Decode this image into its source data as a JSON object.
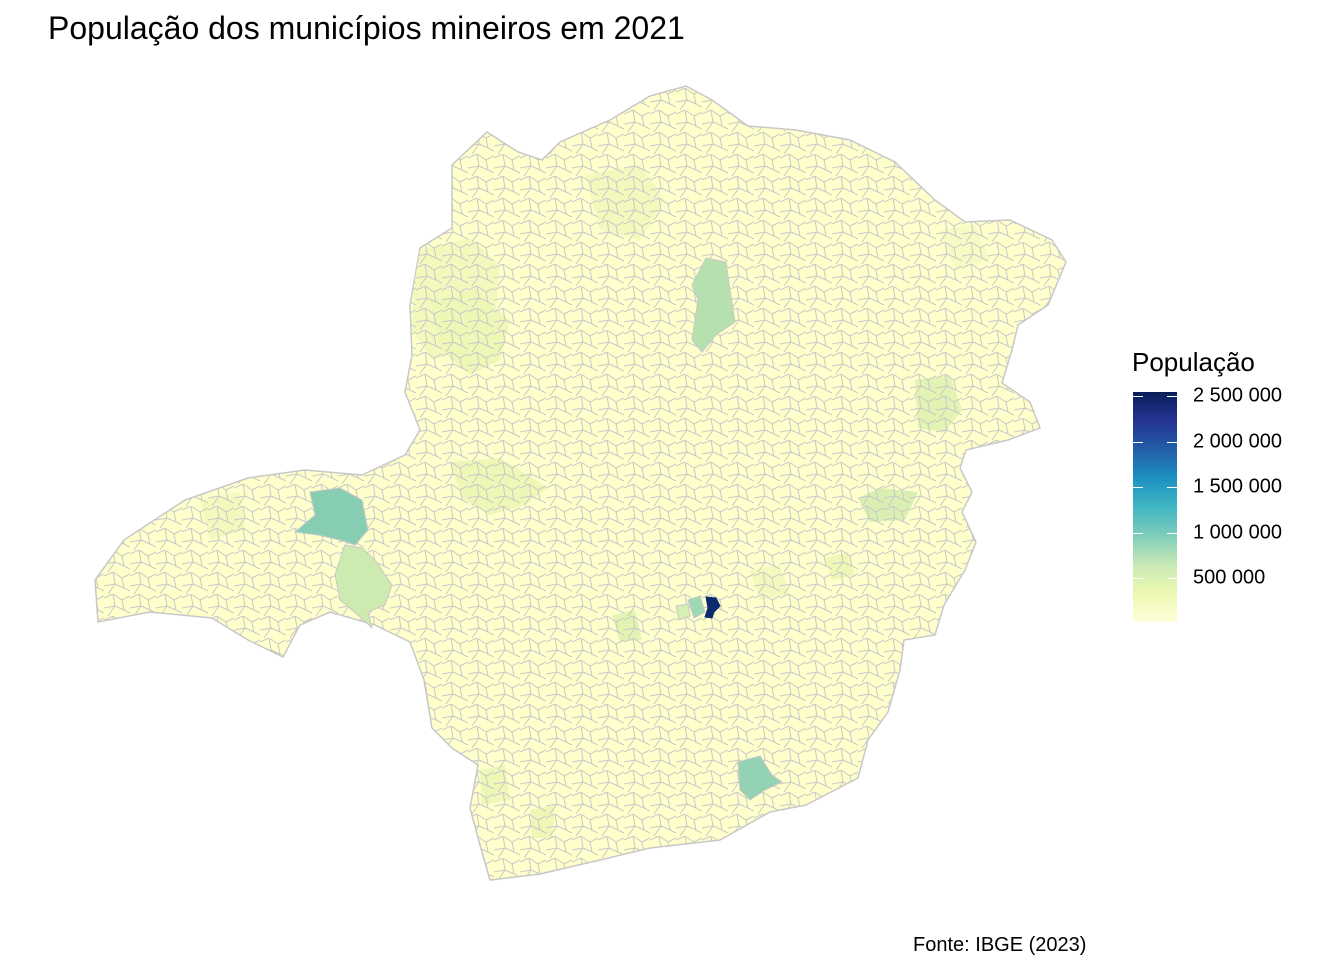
{
  "title": "População dos municípios mineiros em 2021",
  "legend": {
    "title": "População",
    "ticks": [
      "2 500 000",
      "2 000 000",
      "1 500 000",
      "1 000 000",
      "500 000"
    ],
    "scale_colors": [
      "#081d58",
      "#253494",
      "#225ea8",
      "#1d91c0",
      "#41b6c4",
      "#7fcdbb",
      "#c7e9b4",
      "#edf8b1",
      "#ffffd9"
    ]
  },
  "caption": "Fonte: IBGE (2023)",
  "map": {
    "region": "Minas Gerais",
    "base_fill": "#ffffcc",
    "border_color": "#c8c8c8"
  }
}
